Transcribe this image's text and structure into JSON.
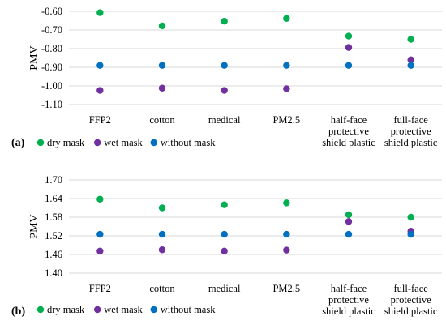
{
  "chart_data": [
    {
      "panel_label": "(a)",
      "type": "scatter",
      "ylabel": "PMV",
      "ylim": [
        -1.1,
        -0.6
      ],
      "yticks": [
        "-0.60",
        "-0.70",
        "-0.80",
        "-0.90",
        "-1.00",
        "-1.10"
      ],
      "categories": [
        [
          "FFP2"
        ],
        [
          "cotton"
        ],
        [
          "medical"
        ],
        [
          "PM2.5"
        ],
        [
          "half-face",
          "protective",
          "shield plastic"
        ],
        [
          "full-face",
          "protective",
          "shield plastic"
        ]
      ],
      "series": [
        {
          "name": "dry mask",
          "color": "#00b050",
          "values": [
            -0.607,
            -0.678,
            -0.653,
            -0.638,
            -0.733,
            -0.75
          ]
        },
        {
          "name": "wet mask",
          "color": "#7030a0",
          "values": [
            -1.024,
            -1.012,
            -1.024,
            -1.015,
            -0.794,
            -0.86
          ]
        },
        {
          "name": "without mask",
          "color": "#0070c0",
          "values": [
            -0.89,
            -0.89,
            -0.89,
            -0.89,
            -0.89,
            -0.89
          ]
        }
      ],
      "grid": true,
      "legend_position": "bottom"
    },
    {
      "panel_label": "(b)",
      "type": "scatter",
      "ylabel": "PMV",
      "ylim": [
        1.4,
        1.7
      ],
      "yticks": [
        "1.70",
        "1.64",
        "1.58",
        "1.52",
        "1.46",
        "1.40"
      ],
      "categories": [
        [
          "FFP2"
        ],
        [
          "cotton"
        ],
        [
          "medical"
        ],
        [
          "PM2.5"
        ],
        [
          "half-face",
          "protective",
          "shield plastic"
        ],
        [
          "full-face",
          "protective",
          "shield plastic"
        ]
      ],
      "series": [
        {
          "name": "dry mask",
          "color": "#00b050",
          "values": [
            1.638,
            1.61,
            1.62,
            1.626,
            1.588,
            1.58
          ]
        },
        {
          "name": "wet mask",
          "color": "#7030a0",
          "values": [
            1.471,
            1.475,
            1.471,
            1.474,
            1.566,
            1.535
          ]
        },
        {
          "name": "without mask",
          "color": "#0070c0",
          "values": [
            1.525,
            1.525,
            1.525,
            1.525,
            1.525,
            1.525
          ]
        }
      ],
      "grid": true,
      "legend_position": "bottom"
    }
  ]
}
